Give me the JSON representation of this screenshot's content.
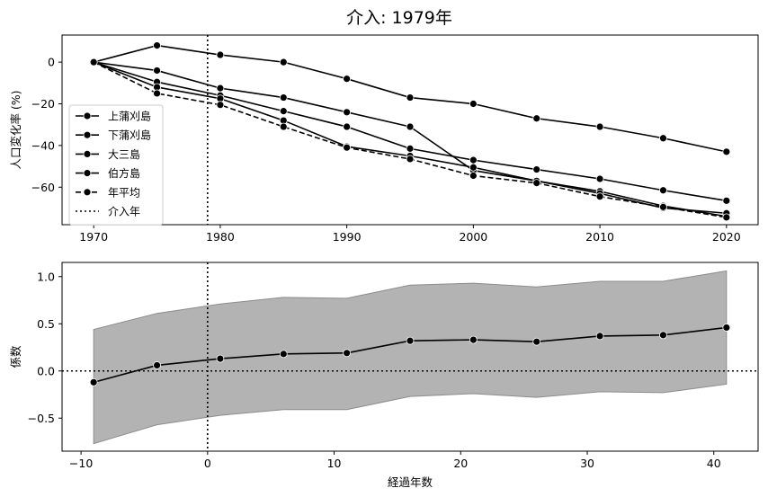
{
  "figure": {
    "title": "介入: 1979年"
  },
  "chart_data": [
    {
      "type": "line",
      "ylabel": "人口変化率 (%)",
      "xlabel": "",
      "xlim": [
        1967.5,
        2022.5
      ],
      "ylim": [
        -78,
        13
      ],
      "xticks": [
        1970,
        1980,
        1990,
        2000,
        2010,
        2020
      ],
      "yticks": [
        0,
        -20,
        -40,
        -60
      ],
      "ytick_labels": [
        "0",
        "−20",
        "−40",
        "−60"
      ],
      "x": [
        1970,
        1975,
        1980,
        1985,
        1990,
        1995,
        2000,
        2005,
        2010,
        2015,
        2020
      ],
      "intervention_x": 1979,
      "legend_position": "lower-left",
      "series": [
        {
          "name": "上蒲刈島",
          "style": "solid",
          "values": [
            0,
            8,
            3.5,
            0,
            -8,
            -17,
            -20,
            -27,
            -31,
            -36.5,
            -43
          ]
        },
        {
          "name": "下蒲刈島",
          "style": "solid",
          "values": [
            0,
            -4,
            -12.5,
            -17,
            -24,
            -31,
            -52,
            -57,
            -62,
            -69,
            -74
          ]
        },
        {
          "name": "大三島",
          "style": "solid",
          "values": [
            0,
            -9.5,
            -16,
            -23.5,
            -31,
            -41.5,
            -47,
            -51.5,
            -56,
            -61.5,
            -66.5
          ]
        },
        {
          "name": "伯方島",
          "style": "solid",
          "values": [
            0,
            -12,
            -17.5,
            -28,
            -40.5,
            -45,
            -50.5,
            -57,
            -63,
            -70,
            -72.5
          ]
        },
        {
          "name": "年平均",
          "style": "dashed",
          "values": [
            0,
            -15,
            -20.5,
            -31,
            -41,
            -46.5,
            -54.5,
            -58,
            -64.5,
            -69.5,
            -74.5
          ]
        }
      ],
      "intervention_legend_label": "介入年"
    },
    {
      "type": "area",
      "xlabel": "経過年数",
      "ylabel": "係数",
      "xlim": [
        -11.5,
        43.5
      ],
      "ylim": [
        -0.85,
        1.15
      ],
      "xticks": [
        -10,
        0,
        10,
        20,
        30,
        40
      ],
      "xtick_labels": [
        "−10",
        "0",
        "10",
        "20",
        "30",
        "40"
      ],
      "yticks": [
        1.0,
        0.5,
        0.0,
        -0.5
      ],
      "ytick_labels": [
        "1.0",
        "0.5",
        "0.0",
        "−0.5"
      ],
      "x": [
        -9,
        -4,
        1,
        6,
        11,
        16,
        21,
        26,
        31,
        36,
        41
      ],
      "coefficient": [
        -0.12,
        0.06,
        0.13,
        0.18,
        0.19,
        0.32,
        0.33,
        0.31,
        0.37,
        0.38,
        0.46
      ],
      "upper": [
        0.44,
        0.61,
        0.71,
        0.78,
        0.77,
        0.91,
        0.93,
        0.89,
        0.95,
        0.95,
        1.06
      ],
      "lower": [
        -0.77,
        -0.57,
        -0.47,
        -0.41,
        -0.41,
        -0.27,
        -0.24,
        -0.28,
        -0.22,
        -0.23,
        -0.14
      ],
      "reference_y": 0,
      "reference_x": 0,
      "band_color": "#b3b3b3",
      "band_edge_color": "#8c8c8c"
    }
  ]
}
